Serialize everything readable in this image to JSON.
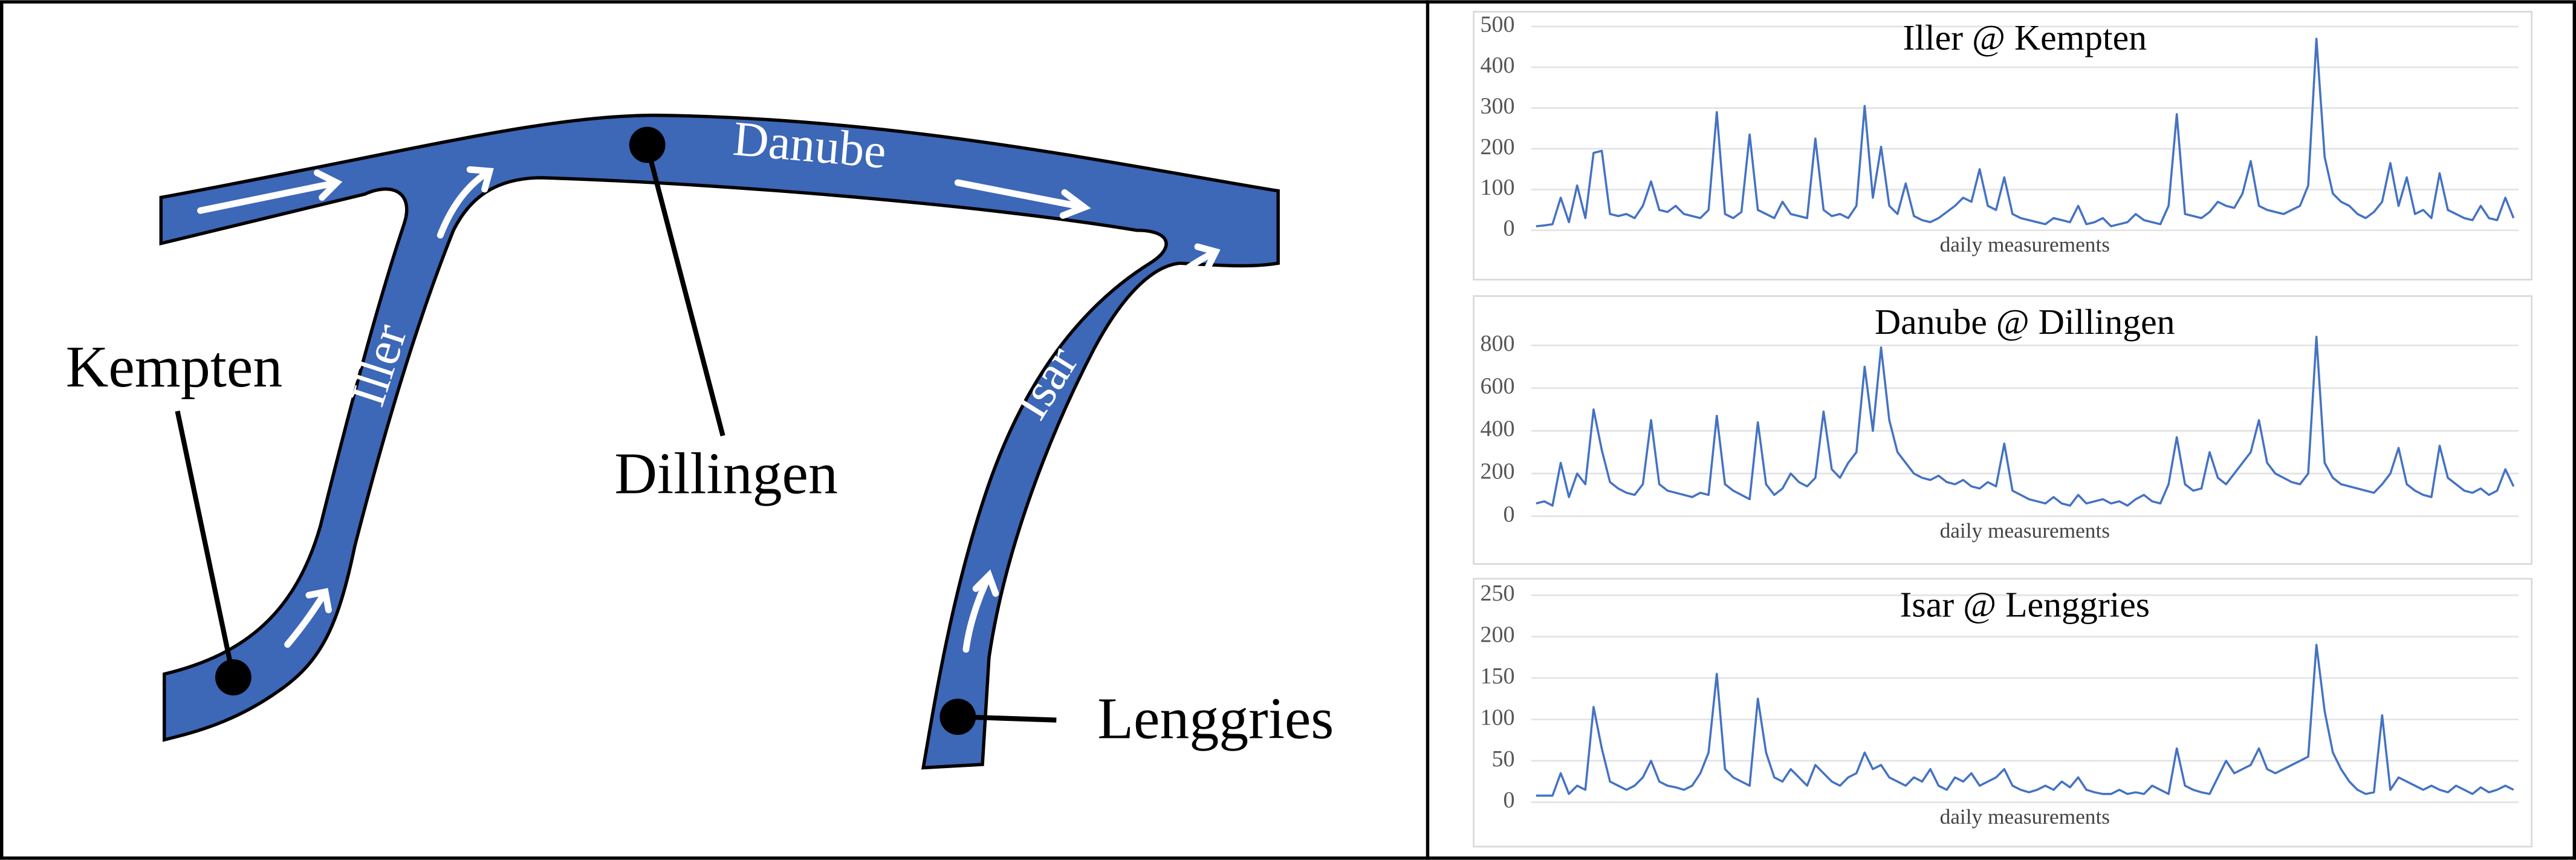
{
  "diagram": {
    "places": [
      "Kempten",
      "Dillingen",
      "Lenggries"
    ],
    "rivers": [
      "Danube",
      "Iller",
      "Isar"
    ]
  },
  "chart_data": [
    {
      "type": "line",
      "title": "Iller @ Kempten",
      "xlabel": "daily measurements",
      "ylim": [
        0,
        500
      ],
      "yticks": [
        0,
        100,
        200,
        300,
        400,
        500
      ],
      "grid": true,
      "series": [
        {
          "color": "#4472c4",
          "values": [
            10,
            12,
            15,
            80,
            20,
            110,
            30,
            190,
            195,
            40,
            35,
            40,
            30,
            60,
            120,
            50,
            45,
            60,
            40,
            35,
            30,
            50,
            290,
            40,
            30,
            45,
            235,
            50,
            40,
            30,
            70,
            40,
            35,
            30,
            225,
            50,
            35,
            40,
            30,
            60,
            305,
            80,
            205,
            60,
            40,
            115,
            35,
            25,
            20,
            30,
            45,
            60,
            80,
            70,
            150,
            60,
            50,
            130,
            40,
            30,
            25,
            20,
            15,
            30,
            25,
            20,
            60,
            15,
            20,
            30,
            10,
            15,
            20,
            40,
            25,
            20,
            15,
            60,
            285,
            40,
            35,
            30,
            45,
            70,
            60,
            55,
            90,
            170,
            60,
            50,
            45,
            40,
            50,
            60,
            110,
            470,
            180,
            90,
            70,
            60,
            40,
            30,
            45,
            70,
            165,
            60,
            130,
            40,
            50,
            30,
            140,
            50,
            40,
            30,
            25,
            60,
            30,
            25,
            80,
            30
          ]
        }
      ]
    },
    {
      "type": "line",
      "title": "Danube @ Dillingen",
      "xlabel": "daily measurements",
      "ylim": [
        0,
        900
      ],
      "yticks": [
        0,
        200,
        400,
        600,
        800
      ],
      "grid": true,
      "series": [
        {
          "color": "#4472c4",
          "values": [
            60,
            70,
            50,
            250,
            90,
            200,
            150,
            500,
            310,
            160,
            130,
            110,
            100,
            150,
            450,
            150,
            120,
            110,
            100,
            90,
            110,
            100,
            470,
            150,
            120,
            100,
            80,
            440,
            150,
            100,
            130,
            200,
            160,
            140,
            180,
            490,
            220,
            180,
            250,
            300,
            700,
            400,
            790,
            450,
            300,
            250,
            200,
            180,
            170,
            190,
            160,
            150,
            170,
            140,
            130,
            160,
            140,
            340,
            120,
            100,
            80,
            70,
            60,
            90,
            60,
            50,
            100,
            60,
            70,
            80,
            60,
            70,
            50,
            80,
            100,
            70,
            60,
            150,
            370,
            150,
            120,
            130,
            300,
            180,
            150,
            200,
            250,
            300,
            450,
            250,
            200,
            180,
            160,
            150,
            200,
            840,
            250,
            180,
            150,
            140,
            130,
            120,
            110,
            150,
            200,
            320,
            150,
            120,
            100,
            90,
            330,
            180,
            150,
            120,
            110,
            130,
            100,
            120,
            220,
            140
          ]
        }
      ]
    },
    {
      "type": "line",
      "title": "Isar @ Lenggries",
      "xlabel": "daily measurements",
      "ylim": [
        0,
        250
      ],
      "yticks": [
        0,
        50,
        100,
        150,
        200,
        250
      ],
      "grid": true,
      "series": [
        {
          "color": "#4472c4",
          "values": [
            8,
            8,
            8,
            35,
            10,
            20,
            15,
            115,
            65,
            25,
            20,
            15,
            20,
            30,
            50,
            25,
            20,
            18,
            15,
            20,
            35,
            60,
            155,
            40,
            30,
            25,
            20,
            125,
            60,
            30,
            25,
            40,
            30,
            20,
            45,
            35,
            25,
            20,
            30,
            35,
            60,
            40,
            45,
            30,
            25,
            20,
            30,
            25,
            40,
            20,
            15,
            30,
            25,
            35,
            20,
            25,
            30,
            40,
            20,
            15,
            12,
            15,
            20,
            15,
            25,
            18,
            30,
            15,
            12,
            10,
            10,
            15,
            10,
            12,
            10,
            20,
            15,
            10,
            65,
            20,
            15,
            12,
            10,
            30,
            50,
            35,
            40,
            45,
            65,
            40,
            35,
            40,
            45,
            50,
            55,
            190,
            110,
            60,
            40,
            25,
            15,
            10,
            12,
            105,
            15,
            30,
            25,
            20,
            15,
            20,
            15,
            12,
            20,
            15,
            10,
            18,
            12,
            15,
            20,
            15
          ]
        }
      ]
    }
  ]
}
